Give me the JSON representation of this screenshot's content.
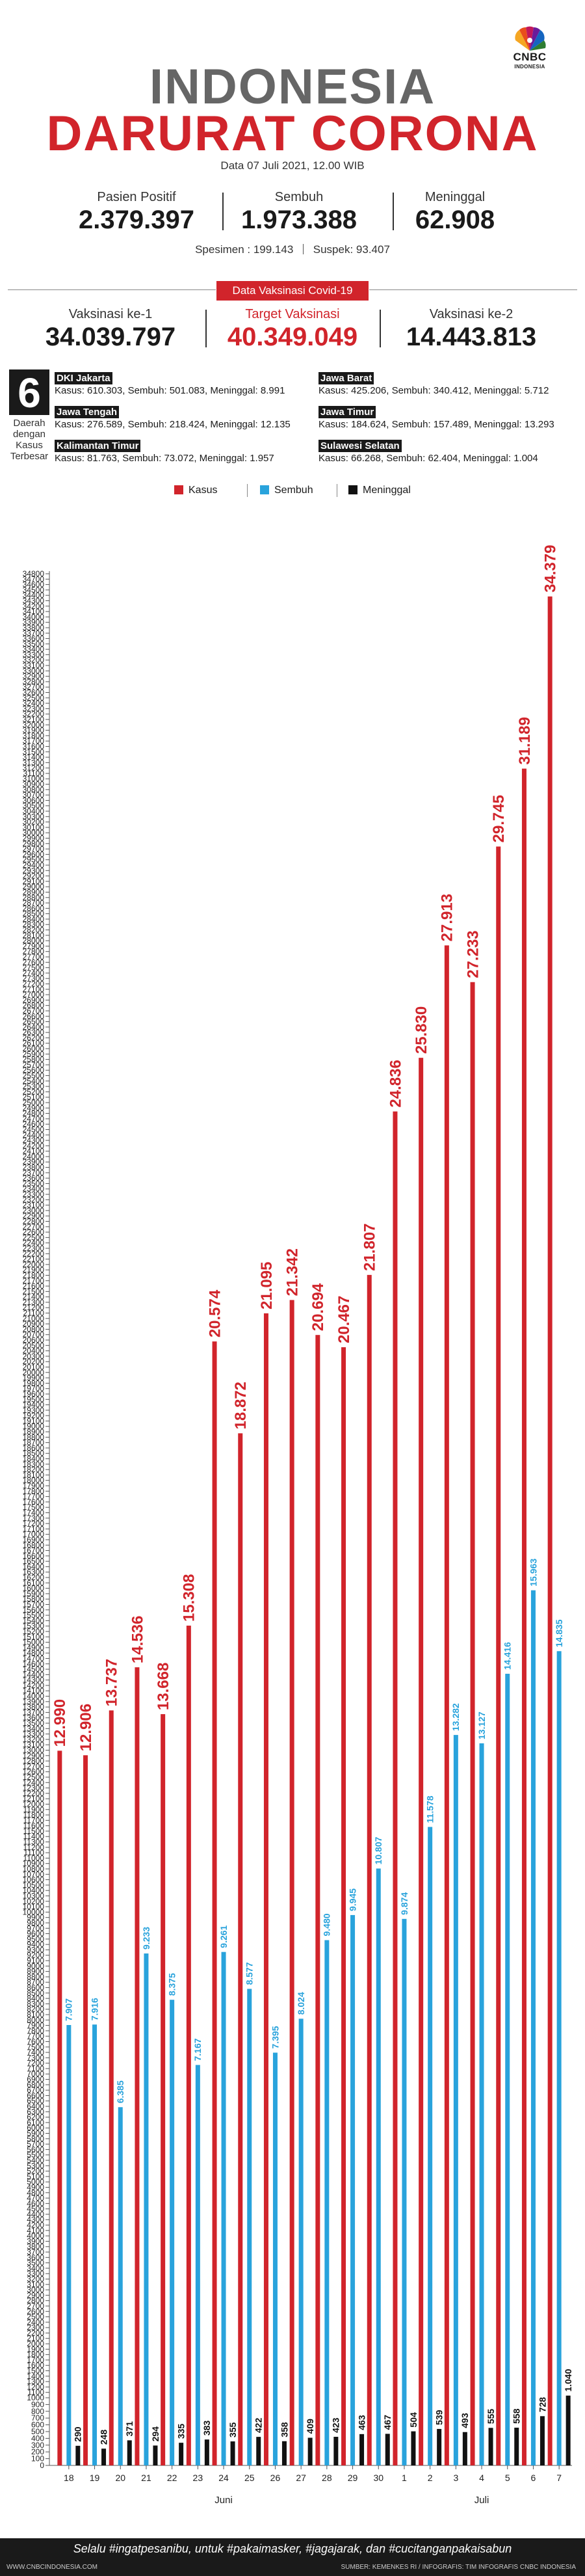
{
  "brand": {
    "logo_text": "CNBC",
    "logo_sub": "INDONESIA"
  },
  "title": {
    "line1": "INDONESIA",
    "line2": "DARURAT CORONA",
    "date": "Data 07 Juli 2021, 12.00 WIB"
  },
  "stats": {
    "positif": {
      "label": "Pasien Positif",
      "value": "2.379.397"
    },
    "sembuh": {
      "label": "Sembuh",
      "value": "1.973.388"
    },
    "meninggal": {
      "label": "Meninggal",
      "value": "62.908"
    },
    "spesimen": "Spesimen : 199.143",
    "suspek": "Suspek: 93.407"
  },
  "vaksinasi": {
    "title": "Data Vaksinasi Covid-19",
    "ke1": {
      "label": "Vaksinasi ke-1",
      "value": "34.039.797"
    },
    "target": {
      "label": "Target Vaksinasi",
      "value": "40.349.049"
    },
    "ke2": {
      "label": "Vaksinasi ke-2",
      "value": "14.443.813"
    }
  },
  "daerah": {
    "number": "6",
    "label": "Daerah dengan Kasus Terbesar",
    "items": [
      {
        "name": "DKI Jakarta",
        "data": "Kasus: 610.303, Sembuh: 501.083, Meninggal: 8.991"
      },
      {
        "name": "Jawa Barat",
        "data": "Kasus: 425.206, Sembuh: 340.412, Meninggal: 5.712"
      },
      {
        "name": "Jawa Tengah",
        "data": "Kasus: 276.589, Sembuh: 218.424, Meninggal: 12.135"
      },
      {
        "name": "Jawa Timur",
        "data": "Kasus: 184.624, Sembuh: 157.489, Meninggal: 13.293"
      },
      {
        "name": "Kalimantan Timur",
        "data": "Kasus: 81.763, Sembuh: 73.072, Meninggal: 1.957"
      },
      {
        "name": "Sulawesi Selatan",
        "data": "Kasus: 66.268, Sembuh: 62.404, Meninggal: 1.004"
      }
    ]
  },
  "colors": {
    "kasus": "#d1242b",
    "sembuh": "#29a3dc",
    "meninggal": "#111111",
    "title_gray": "#666666"
  },
  "chart_data": {
    "type": "bar",
    "categories": [
      "18",
      "19",
      "20",
      "21",
      "22",
      "23",
      "24",
      "25",
      "26",
      "27",
      "28",
      "29",
      "30",
      "1",
      "2",
      "3",
      "4",
      "5",
      "6",
      "7"
    ],
    "month_labels": [
      {
        "label": "Juni",
        "from": 0,
        "to": 12
      },
      {
        "label": "Juli",
        "from": 13,
        "to": 19
      }
    ],
    "series": [
      {
        "name": "Kasus",
        "values": [
          12990,
          12906,
          13737,
          14536,
          13668,
          15308,
          20574,
          18872,
          21095,
          21342,
          20694,
          20467,
          21807,
          24836,
          25830,
          27913,
          27233,
          29745,
          31189,
          34379
        ]
      },
      {
        "name": "Sembuh",
        "values": [
          7907,
          7916,
          6385,
          9233,
          8375,
          7167,
          9261,
          8577,
          7395,
          8024,
          9480,
          9945,
          10807,
          9874,
          11578,
          13282,
          13127,
          14416,
          15963,
          14835
        ]
      },
      {
        "name": "Meninggal",
        "values": [
          290,
          248,
          371,
          294,
          335,
          383,
          355,
          422,
          358,
          409,
          423,
          463,
          467,
          504,
          539,
          493,
          555,
          558,
          728,
          1040
        ]
      }
    ],
    "value_labels": {
      "Kasus": [
        "12.990",
        "12.906",
        "13.737",
        "14.536",
        "13.668",
        "15.308",
        "20.574",
        "18.872",
        "21.095",
        "21.342",
        "20.694",
        "20.467",
        "21.807",
        "24.836",
        "25.830",
        "27.913",
        "27.233",
        "29.745",
        "31.189",
        "34.379"
      ],
      "Sembuh": [
        "7.907",
        "7.916",
        "6.385",
        "9.233",
        "8.375",
        "7.167",
        "9.261",
        "8.577",
        "7.395",
        "8.024",
        "9.480",
        "9.945",
        "10.807",
        "9.874",
        "11.578",
        "13.282",
        "13.127",
        "14.416",
        "15.963",
        "14.835"
      ],
      "Meninggal": [
        "290",
        "248",
        "371",
        "294",
        "335",
        "383",
        "355",
        "422",
        "358",
        "409",
        "423",
        "463",
        "467",
        "504",
        "539",
        "493",
        "555",
        "558",
        "728",
        "1.040"
      ]
    },
    "y_ticks": [
      0,
      100,
      200,
      300,
      400,
      500,
      600,
      700,
      800,
      900,
      1000,
      1100,
      1200,
      1300,
      1400,
      1500,
      1600,
      1700,
      1800,
      1900,
      2000,
      2100,
      2200,
      2300,
      2400,
      2500,
      2600,
      2700,
      2800,
      2900,
      3000,
      3100,
      3200,
      3300,
      3400,
      3500,
      3600,
      3700,
      3800,
      3900,
      4000,
      4100,
      4200,
      4300,
      4400,
      4500,
      4600,
      4700,
      4800,
      4900,
      5000,
      5100,
      5200,
      5300,
      5400,
      5500,
      5600,
      5700,
      5800,
      5900,
      6000,
      6100,
      6200,
      6300,
      6400,
      6500,
      6600,
      6700,
      6800,
      6900,
      7000,
      7100,
      7200,
      7300,
      7400,
      7500,
      7600,
      7700,
      7800,
      7900,
      8000,
      8100,
      8200,
      8300,
      8400,
      8500,
      8600,
      8700,
      8800,
      8900,
      9000,
      9100,
      9200,
      9300,
      9400,
      9500,
      9600,
      9700,
      9800,
      9900,
      10000,
      10100,
      10200,
      10300,
      10400,
      10500,
      10600,
      10700,
      10800,
      10900,
      11000,
      11100,
      11200,
      11300,
      11400,
      11500,
      11600,
      11700,
      11800,
      11900,
      12000,
      12100,
      12200,
      12300,
      12400,
      12500,
      12600,
      12700,
      12800,
      12900,
      13000,
      13100,
      13200,
      13300,
      13400,
      13500,
      13600,
      13700,
      13800,
      13900,
      14000,
      14100,
      14200,
      14300,
      14400,
      14500,
      14600,
      14700,
      14800,
      14900,
      15000,
      15100,
      15200,
      15300,
      15400,
      15500,
      15600,
      15700,
      15800,
      15900,
      16000,
      16100,
      16200,
      16300,
      16400,
      16500,
      16600,
      16700,
      16800,
      16900,
      17000,
      17100,
      17200,
      17300,
      17400,
      17500,
      17600,
      17700,
      17800,
      17900,
      18000,
      18100,
      18200,
      18300,
      18400,
      18500,
      18600,
      18700,
      18800,
      18900,
      19000,
      19100,
      19200,
      19300,
      19400,
      19500,
      19600,
      19700,
      19800,
      19900,
      20000,
      20100,
      20200,
      20300,
      20400,
      20500,
      20600,
      20700,
      20800,
      20900,
      21000,
      21100,
      21200,
      21300,
      21400,
      21500,
      21600,
      21700,
      21800,
      21900,
      22000,
      22100,
      22200,
      22300,
      22400,
      22500,
      22600,
      22700,
      22800,
      22900,
      23000,
      23100,
      23200,
      23300,
      23400,
      23500,
      23600,
      23700,
      23800,
      23900,
      24000,
      24100,
      24200,
      24300,
      24400,
      24500,
      24600,
      24700,
      24800,
      24900,
      25000,
      25100,
      25200,
      25300,
      25400,
      25500,
      25600,
      25700,
      25800,
      25900,
      26000,
      26100,
      26200,
      26300,
      26400,
      26500,
      26600,
      26700,
      26800,
      26900,
      27000,
      27100,
      27200,
      27300,
      27400,
      27500,
      27600,
      27700,
      27800,
      27900,
      28000,
      28100,
      28200,
      28300,
      28400,
      28500,
      28600,
      28700,
      28800,
      28900,
      29000,
      29100,
      29200,
      29300,
      29400,
      29500,
      29600,
      29700,
      29800,
      29900,
      30000,
      30100,
      30200,
      30300,
      30400,
      30500,
      30600,
      30700,
      30800,
      30900,
      31000,
      31100,
      31200,
      31300,
      31400,
      31500,
      31600,
      31700,
      31800,
      31900,
      32000,
      32100,
      32200,
      32300,
      32400,
      32500,
      32600,
      32700,
      32800,
      32900,
      33000,
      33100,
      33200,
      33300,
      33400,
      33500,
      33600,
      33700,
      33800,
      33900,
      34000,
      34100,
      34200,
      34300,
      34400,
      34500,
      34600,
      34700,
      34800
    ],
    "ylim": [
      0,
      34800
    ],
    "y_scale": "piecewise",
    "grid": false,
    "legend_position": "top"
  },
  "footer": {
    "slogan": "Selalu #ingatpesanibu, untuk #pakaimasker, #jagajarak, dan #cucitanganpakaisabun",
    "website": "WWW.CNBCINDONESIA.COM",
    "source": "SUMBER: KEMENKES RI / INFOGRAFIS: TIM INFOGRAFIS CNBC INDONESIA"
  }
}
